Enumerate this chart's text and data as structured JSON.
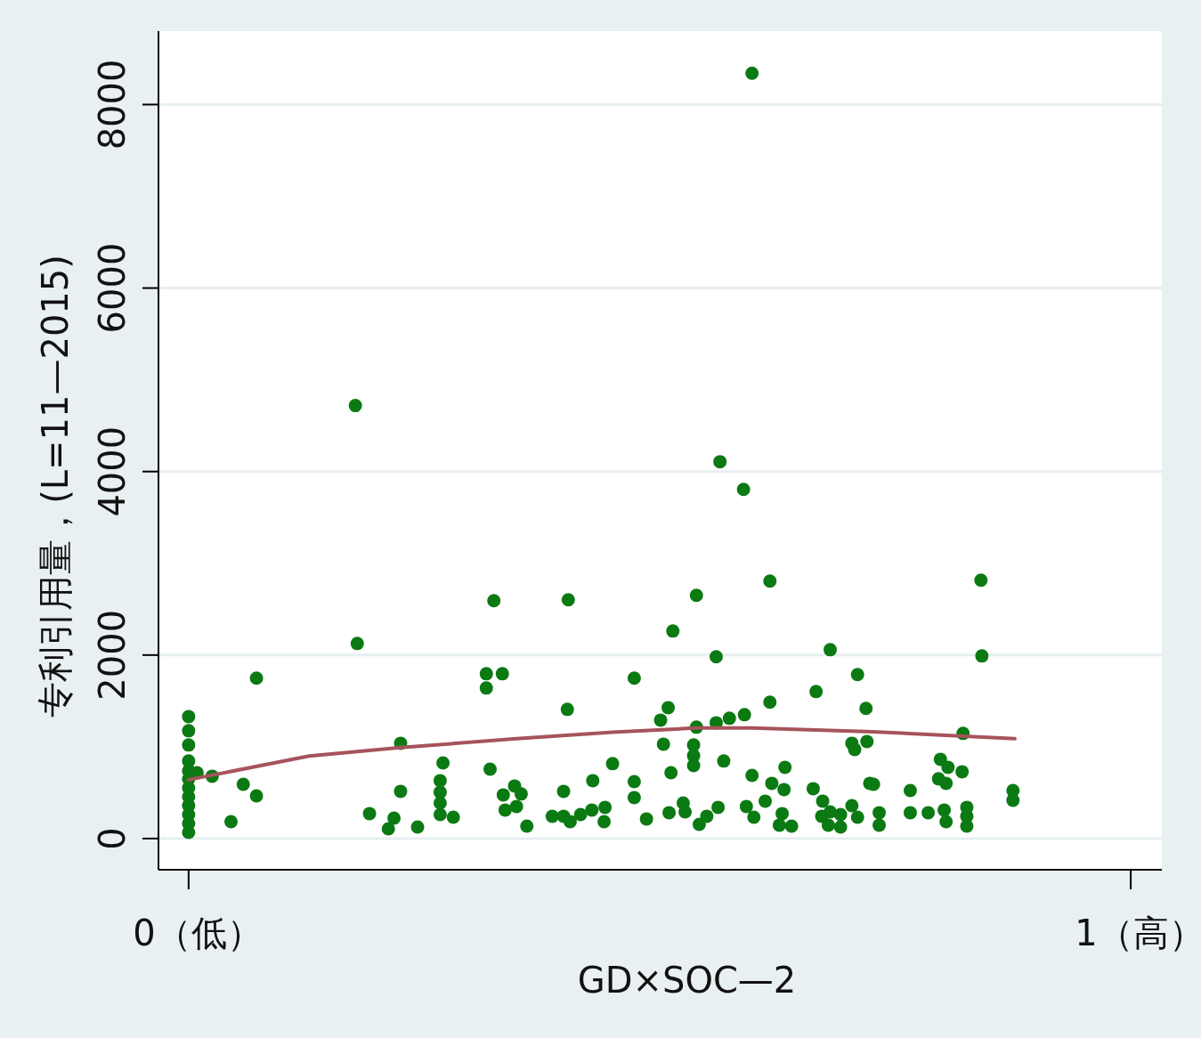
{
  "chart_data": {
    "type": "scatter",
    "xlabel": "GD×SOC—2",
    "ylabel": "专利引用量，(L=11—2015)",
    "xlim": [
      -0.032,
      1.033
    ],
    "ylim": [
      -340,
      8800
    ],
    "xticks": [
      {
        "value": 0,
        "label": "0（低）"
      },
      {
        "value": 1,
        "label": "1（高）"
      }
    ],
    "yticks": [
      0,
      2000,
      4000,
      6000,
      8000
    ],
    "grid": "y",
    "series": [
      {
        "color": "#0b7a12",
        "marker": "circle",
        "x": [
          0,
          0,
          0,
          0,
          0,
          0,
          0,
          0,
          0,
          0,
          0,
          0,
          0.009,
          0.025,
          0.045,
          0.058,
          0.072,
          0.072,
          0.177,
          0.179,
          0.192,
          0.212,
          0.218,
          0.225,
          0.225,
          0.243,
          0.27,
          0.267,
          0.267,
          0.267,
          0.267,
          0.281,
          0.316,
          0.316,
          0.32,
          0.324,
          0.333,
          0.334,
          0.346,
          0.353,
          0.336,
          0.348,
          0.359,
          0.398,
          0.403,
          0.402,
          0.386,
          0.398,
          0.405,
          0.416,
          0.428,
          0.429,
          0.442,
          0.441,
          0.45,
          0.473,
          0.473,
          0.473,
          0.486,
          0.509,
          0.501,
          0.504,
          0.512,
          0.514,
          0.51,
          0.525,
          0.527,
          0.539,
          0.539,
          0.536,
          0.536,
          0.536,
          0.542,
          0.562,
          0.55,
          0.56,
          0.56,
          0.568,
          0.574,
          0.59,
          0.598,
          0.592,
          0.6,
          0.617,
          0.617,
          0.619,
          0.612,
          0.632,
          0.633,
          0.63,
          0.627,
          0.64,
          0.666,
          0.681,
          0.663,
          0.673,
          0.672,
          0.681,
          0.692,
          0.679,
          0.692,
          0.704,
          0.71,
          0.71,
          0.704,
          0.707,
          0.719,
          0.72,
          0.723,
          0.727,
          0.733,
          0.733,
          0.766,
          0.766,
          0.785,
          0.802,
          0.804,
          0.798,
          0.806,
          0.796,
          0.804,
          0.821,
          0.822,
          0.826,
          0.826,
          0.826,
          0.841,
          0.842,
          0.875,
          0.875,
          0.598,
          0.564,
          0.589
        ],
        "values": [
          1330,
          1175,
          1020,
          845,
          738,
          650,
          553,
          456,
          360,
          262,
          165,
          68,
          718,
          680,
          184,
          592,
          466,
          1748,
          4719,
          2126,
          272,
          107,
          223,
          515,
          1039,
          126,
          825,
          631,
          505,
          388,
          262,
          233,
          1796,
          1641,
          757,
          2593,
          1796,
          476,
          573,
          486,
          311,
          350,
          136,
          515,
          2602,
          1408,
          243,
          243,
          184,
          262,
          311,
          631,
          340,
          184,
          816,
          1748,
          621,
          447,
          214,
          1427,
          1291,
          1029,
          718,
          2262,
          282,
          388,
          291,
          2651,
          1214,
          1020,
          903,
          796,
          155,
          340,
          243,
          1262,
          1981,
          845,
          1311,
          1350,
          689,
          350,
          233,
          2806,
          1486,
          602,
          408,
          534,
          777,
          272,
          146,
          136,
          1602,
          2058,
          544,
          408,
          243,
          291,
          262,
          146,
          126,
          359,
          233,
          1787,
          1039,
          971,
          1418,
          1058,
          602,
          592,
          282,
          146,
          524,
          282,
          282,
          311,
          184,
          864,
          777,
          651,
          602,
          728,
          1146,
          340,
          243,
          136,
          2816,
          1990,
          524,
          418,
          8341,
          4107,
          3806
        ]
      },
      {
        "type": "line",
        "color": "#a6535c",
        "line_style": "solid",
        "x": [
          0,
          0.128,
          0.222,
          0.348,
          0.45,
          0.537,
          0.598,
          0.726,
          0.877
        ],
        "values": [
          641,
          900,
          990,
          1088,
          1160,
          1204,
          1204,
          1165,
          1088
        ]
      }
    ]
  }
}
